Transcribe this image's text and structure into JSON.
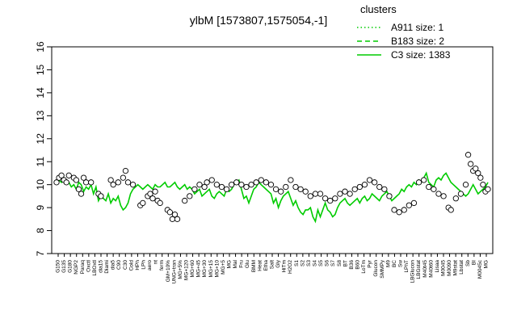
{
  "chart_data": {
    "type": "line",
    "title": "ylbM [1573807,1575054,-1]",
    "xlabel": "",
    "ylabel": "",
    "ylim": [
      7,
      16
    ],
    "yticks": [
      7,
      8,
      9,
      10,
      11,
      12,
      13,
      14,
      15,
      16
    ],
    "grid": false,
    "legend": {
      "title": "clusters",
      "placement": "top-right",
      "entries": [
        {
          "label": "A911 size: 1",
          "style": "dotted"
        },
        {
          "label": "B183 size: 2",
          "style": "dashed"
        },
        {
          "label": "C3 size: 1383",
          "style": "solid"
        }
      ]
    },
    "xtick_labels": [
      "G150",
      "G135",
      "G180",
      "NGP2",
      "Paraq",
      "Oxctl",
      "LBOxtl",
      "dia15",
      "Diami",
      "dia5",
      "C90",
      "C30",
      "Cold",
      "HPh",
      "LPh",
      "aero",
      "nt",
      "ferm",
      "GM+10%",
      "UNG+tran",
      "MG+5%",
      "MG+120",
      "MG+60",
      "MG+45",
      "MG+30",
      "MG+15",
      "MG+10",
      "MG+5",
      "MG",
      "Mal",
      "Fru",
      "Glu",
      "BMM",
      "Heat",
      "Etha",
      "Salt",
      "Gly",
      "HiTm",
      "H2O2",
      "S1",
      "S2",
      "S3",
      "S4",
      "S5",
      "S6",
      "S7",
      "S8",
      "BT",
      "B36",
      "B60",
      "LoTm",
      "Pyr",
      "Glucon",
      "SMMPy",
      "M9",
      "BC",
      "Sw",
      "LPhT",
      "LBGlucon",
      "LBGstat",
      "M40t45",
      "M40t60",
      "Lisaa",
      "M0045",
      "M0090",
      "M9stat",
      "Lbstat",
      "Sb",
      "BI",
      "M0045c",
      "MG"
    ],
    "series": [
      {
        "name": "C3 size: 1383",
        "color": "#00cc00",
        "style": "solid",
        "x": [
          1,
          2,
          3,
          4,
          5,
          6,
          7,
          8,
          9,
          10,
          11,
          12,
          13,
          14,
          15,
          16,
          17,
          18,
          19,
          20,
          21,
          22,
          23,
          24,
          25,
          26,
          27,
          28,
          29,
          30,
          31,
          32,
          33,
          34,
          35,
          36,
          37,
          38,
          39,
          40,
          41,
          42,
          43,
          44,
          45,
          46,
          47,
          48,
          49,
          50,
          51,
          52,
          53,
          54,
          55,
          56,
          57,
          58,
          59,
          60,
          61,
          62,
          63,
          64,
          65,
          66,
          67,
          68,
          69,
          70,
          71,
          72,
          73,
          74,
          75,
          76,
          77,
          78,
          79,
          80,
          81,
          82,
          83,
          84,
          85,
          86,
          87,
          88,
          89,
          90,
          91,
          92,
          93,
          94,
          95,
          96,
          97,
          98,
          99,
          100,
          101,
          102,
          103,
          104,
          105,
          106,
          107,
          108,
          109,
          110,
          111,
          112,
          113,
          114,
          115,
          116,
          117,
          118,
          119,
          120,
          121,
          122,
          123,
          124,
          125,
          126,
          127,
          128,
          129,
          130,
          131,
          132,
          133,
          134,
          135,
          136,
          137,
          138,
          139,
          140,
          141,
          142,
          143,
          144,
          145,
          146,
          147,
          148,
          149,
          150,
          151,
          152,
          153,
          154,
          155,
          156,
          157,
          158,
          159,
          160,
          161,
          162,
          163,
          164,
          165,
          166,
          167,
          168,
          169,
          170,
          171,
          172,
          173,
          174,
          175,
          176
        ],
        "values": [
          10.1,
          10.2,
          10.1,
          10.3,
          10.2,
          10.1,
          9.9,
          10.0,
          9.8,
          10.1,
          10.0,
          9.7,
          9.9,
          9.8,
          10.0,
          9.6,
          9.9,
          9.3,
          9.5,
          9.4,
          9.3,
          9.6,
          9.2,
          9.4,
          9.3,
          9.5,
          9.1,
          8.9,
          9.0,
          9.2,
          9.6,
          9.8,
          9.9,
          10.0,
          9.9,
          9.8,
          9.9,
          10.0,
          9.9,
          9.8,
          10.0,
          9.9,
          9.9,
          10.0,
          10.1,
          9.9,
          9.9,
          10.0,
          10.1,
          9.9,
          9.8,
          9.9,
          10.0,
          9.8,
          9.9,
          9.8,
          9.6,
          9.7,
          9.8,
          9.5,
          9.6,
          9.7,
          9.8,
          9.5,
          9.4,
          9.6,
          9.7,
          9.6,
          9.5,
          9.8,
          9.7,
          9.8,
          10.0,
          10.1,
          10.2,
          9.8,
          9.4,
          9.5,
          9.2,
          9.5,
          9.8,
          9.9,
          10.1,
          10.0,
          9.9,
          9.8,
          9.7,
          9.6,
          9.2,
          9.4,
          9.0,
          9.3,
          9.5,
          9.6,
          9.7,
          9.4,
          9.1,
          9.3,
          9.0,
          8.8,
          8.7,
          8.9,
          8.9,
          9.0,
          8.6,
          8.4,
          8.9,
          8.6,
          8.9,
          9.2,
          8.9,
          8.8,
          8.6,
          8.7,
          9.0,
          9.2,
          9.3,
          9.4,
          9.2,
          9.1,
          9.2,
          9.3,
          9.4,
          9.2,
          9.4,
          9.5,
          9.3,
          9.4,
          9.6,
          9.5,
          9.4,
          9.3,
          9.5,
          9.6,
          9.7,
          9.5,
          9.3,
          9.4,
          9.5,
          9.6,
          9.8,
          9.7,
          9.9,
          10.0,
          9.9,
          10.1,
          10.0,
          10.2,
          10.1,
          10.3,
          10.5,
          10.1,
          10.0,
          9.9,
          10.2,
          10.3,
          10.2,
          10.4,
          10.5,
          10.3,
          10.1,
          10.0,
          9.9,
          9.8,
          9.7,
          9.6,
          9.5,
          9.6,
          9.8,
          10.0,
          9.8,
          9.6,
          9.7,
          9.8,
          9.9,
          10.1
        ]
      }
    ],
    "points": [
      {
        "x": 1,
        "y": 10.1
      },
      {
        "x": 2,
        "y": 10.3
      },
      {
        "x": 3,
        "y": 10.4
      },
      {
        "x": 4,
        "y": 10.2
      },
      {
        "x": 5,
        "y": 10.1
      },
      {
        "x": 6,
        "y": 10.4
      },
      {
        "x": 8,
        "y": 10.3
      },
      {
        "x": 9,
        "y": 10.2
      },
      {
        "x": 10,
        "y": 9.8
      },
      {
        "x": 11,
        "y": 9.6
      },
      {
        "x": 12,
        "y": 10.3
      },
      {
        "x": 13,
        "y": 10.1
      },
      {
        "x": 15,
        "y": 10.1
      },
      {
        "x": 18,
        "y": 9.6
      },
      {
        "x": 19,
        "y": 9.5
      },
      {
        "x": 23,
        "y": 10.2
      },
      {
        "x": 24,
        "y": 10.0
      },
      {
        "x": 26,
        "y": 10.1
      },
      {
        "x": 28,
        "y": 10.3
      },
      {
        "x": 29,
        "y": 10.6
      },
      {
        "x": 30,
        "y": 10.1
      },
      {
        "x": 32,
        "y": 10.0
      },
      {
        "x": 35,
        "y": 9.1
      },
      {
        "x": 36,
        "y": 9.2
      },
      {
        "x": 38,
        "y": 9.5
      },
      {
        "x": 39,
        "y": 9.6
      },
      {
        "x": 40,
        "y": 9.4
      },
      {
        "x": 41,
        "y": 9.7
      },
      {
        "x": 42,
        "y": 9.3
      },
      {
        "x": 43,
        "y": 9.2
      },
      {
        "x": 46,
        "y": 8.9
      },
      {
        "x": 47,
        "y": 8.8
      },
      {
        "x": 48,
        "y": 8.5
      },
      {
        "x": 49,
        "y": 8.7
      },
      {
        "x": 50,
        "y": 8.5
      },
      {
        "x": 53,
        "y": 9.3
      },
      {
        "x": 55,
        "y": 9.5
      },
      {
        "x": 57,
        "y": 9.8
      },
      {
        "x": 59,
        "y": 10.0
      },
      {
        "x": 61,
        "y": 9.9
      },
      {
        "x": 62,
        "y": 10.1
      },
      {
        "x": 64,
        "y": 10.2
      },
      {
        "x": 66,
        "y": 10.0
      },
      {
        "x": 68,
        "y": 9.9
      },
      {
        "x": 70,
        "y": 9.8
      },
      {
        "x": 72,
        "y": 10.0
      },
      {
        "x": 74,
        "y": 10.1
      },
      {
        "x": 76,
        "y": 10.0
      },
      {
        "x": 78,
        "y": 9.9
      },
      {
        "x": 80,
        "y": 10.0
      },
      {
        "x": 82,
        "y": 10.1
      },
      {
        "x": 84,
        "y": 10.2
      },
      {
        "x": 86,
        "y": 10.1
      },
      {
        "x": 88,
        "y": 10.0
      },
      {
        "x": 90,
        "y": 9.8
      },
      {
        "x": 92,
        "y": 9.7
      },
      {
        "x": 94,
        "y": 9.9
      },
      {
        "x": 96,
        "y": 10.2
      },
      {
        "x": 98,
        "y": 9.9
      },
      {
        "x": 100,
        "y": 9.8
      },
      {
        "x": 102,
        "y": 9.7
      },
      {
        "x": 104,
        "y": 9.5
      },
      {
        "x": 106,
        "y": 9.6
      },
      {
        "x": 108,
        "y": 9.6
      },
      {
        "x": 110,
        "y": 9.4
      },
      {
        "x": 112,
        "y": 9.3
      },
      {
        "x": 114,
        "y": 9.4
      },
      {
        "x": 116,
        "y": 9.6
      },
      {
        "x": 118,
        "y": 9.7
      },
      {
        "x": 120,
        "y": 9.6
      },
      {
        "x": 122,
        "y": 9.8
      },
      {
        "x": 124,
        "y": 9.9
      },
      {
        "x": 126,
        "y": 10.0
      },
      {
        "x": 128,
        "y": 10.2
      },
      {
        "x": 130,
        "y": 10.1
      },
      {
        "x": 132,
        "y": 9.9
      },
      {
        "x": 134,
        "y": 9.8
      },
      {
        "x": 136,
        "y": 9.5
      },
      {
        "x": 138,
        "y": 8.9
      },
      {
        "x": 140,
        "y": 8.8
      },
      {
        "x": 142,
        "y": 8.9
      },
      {
        "x": 144,
        "y": 9.1
      },
      {
        "x": 146,
        "y": 9.2
      },
      {
        "x": 148,
        "y": 10.1
      },
      {
        "x": 150,
        "y": 10.2
      },
      {
        "x": 152,
        "y": 9.9
      },
      {
        "x": 154,
        "y": 9.8
      },
      {
        "x": 156,
        "y": 9.6
      },
      {
        "x": 158,
        "y": 9.5
      },
      {
        "x": 160,
        "y": 9.0
      },
      {
        "x": 161,
        "y": 8.9
      },
      {
        "x": 163,
        "y": 9.4
      },
      {
        "x": 165,
        "y": 9.6
      },
      {
        "x": 167,
        "y": 10.0
      },
      {
        "x": 168,
        "y": 11.3
      },
      {
        "x": 169,
        "y": 10.9
      },
      {
        "x": 170,
        "y": 10.6
      },
      {
        "x": 171,
        "y": 10.7
      },
      {
        "x": 172,
        "y": 10.5
      },
      {
        "x": 173,
        "y": 10.3
      },
      {
        "x": 174,
        "y": 10.0
      },
      {
        "x": 175,
        "y": 9.7
      },
      {
        "x": 176,
        "y": 9.8
      }
    ]
  }
}
